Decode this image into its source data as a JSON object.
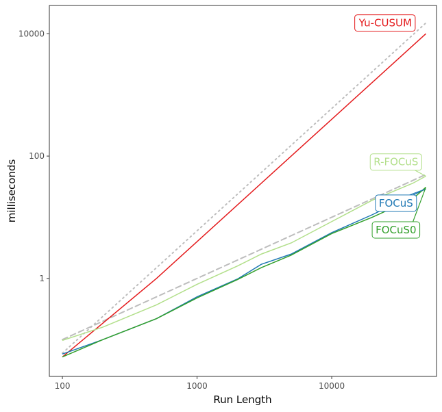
{
  "chart_data": {
    "type": "line",
    "title": "",
    "xlabel": "Run Length",
    "ylabel": "milliseconds",
    "x_scale": "log10",
    "y_scale": "log10",
    "xlim": [
      80,
      60000
    ],
    "ylim": [
      0.025,
      29000
    ],
    "x_ticks": [
      {
        "value": 100,
        "label": "100"
      },
      {
        "value": 1000,
        "label": "1000"
      },
      {
        "value": 10000,
        "label": "10000"
      }
    ],
    "y_ticks": [
      {
        "value": 1,
        "label": "1"
      },
      {
        "value": 100,
        "label": "100"
      },
      {
        "value": 10000,
        "label": "10000"
      }
    ],
    "grid": false,
    "legend": "direct labels at line ends",
    "series": [
      {
        "name": "Yu-CUSUM",
        "color": "#e41a1c",
        "style": "solid",
        "label_color": "#e41a1c",
        "points": [
          [
            100,
            0.052
          ],
          [
            500,
            1.0
          ],
          [
            1000,
            4.0
          ],
          [
            5000,
            100
          ],
          [
            10000,
            400
          ],
          [
            50000,
            10000
          ]
        ]
      },
      {
        "name": "R-FOCuS",
        "color": "#b2df8a",
        "style": "solid",
        "label_color": "#b2df8a",
        "points": [
          [
            100,
            0.097
          ],
          [
            200,
            0.16
          ],
          [
            500,
            0.37
          ],
          [
            1000,
            0.8
          ],
          [
            2000,
            1.6
          ],
          [
            3000,
            2.5
          ],
          [
            5000,
            3.8
          ],
          [
            10000,
            8.5
          ],
          [
            20000,
            19
          ],
          [
            40000,
            36
          ],
          [
            50000,
            47
          ]
        ]
      },
      {
        "name": "FOCuS",
        "color": "#1f78b4",
        "style": "solid",
        "label_color": "#1f78b4",
        "points": [
          [
            100,
            0.058
          ],
          [
            200,
            0.1
          ],
          [
            500,
            0.22
          ],
          [
            1000,
            0.5
          ],
          [
            2000,
            0.98
          ],
          [
            3000,
            1.7
          ],
          [
            5000,
            2.5
          ],
          [
            10000,
            5.6
          ],
          [
            20000,
            11
          ],
          [
            40000,
            23
          ],
          [
            50000,
            29
          ]
        ]
      },
      {
        "name": "FOCuS0",
        "color": "#33a02c",
        "style": "solid",
        "label_color": "#33a02c",
        "points": [
          [
            100,
            0.052
          ],
          [
            200,
            0.1
          ],
          [
            500,
            0.22
          ],
          [
            1000,
            0.48
          ],
          [
            2000,
            0.96
          ],
          [
            3000,
            1.5
          ],
          [
            5000,
            2.4
          ],
          [
            10000,
            5.4
          ],
          [
            20000,
            10
          ],
          [
            40000,
            20
          ],
          [
            50000,
            31
          ]
        ]
      },
      {
        "name": "",
        "color": "#bdbdbd",
        "style": "dashed",
        "points": [
          [
            100,
            0.1
          ],
          [
            50000,
            50
          ]
        ]
      },
      {
        "name": "",
        "color": "#bdbdbd",
        "style": "dotted",
        "points": [
          [
            100,
            0.06
          ],
          [
            50000,
            15000
          ]
        ]
      }
    ],
    "annotations": [
      {
        "text": "Yu-CUSUM",
        "series": 0,
        "x": 25000,
        "y": 15000
      },
      {
        "text": "R-FOCuS",
        "series": 1,
        "x": 30000,
        "y": 80
      },
      {
        "text": "FOCuS",
        "series": 2,
        "x": 30000,
        "y": 17
      },
      {
        "text": "FOCuS0",
        "series": 3,
        "x": 30000,
        "y": 6.2
      }
    ]
  }
}
